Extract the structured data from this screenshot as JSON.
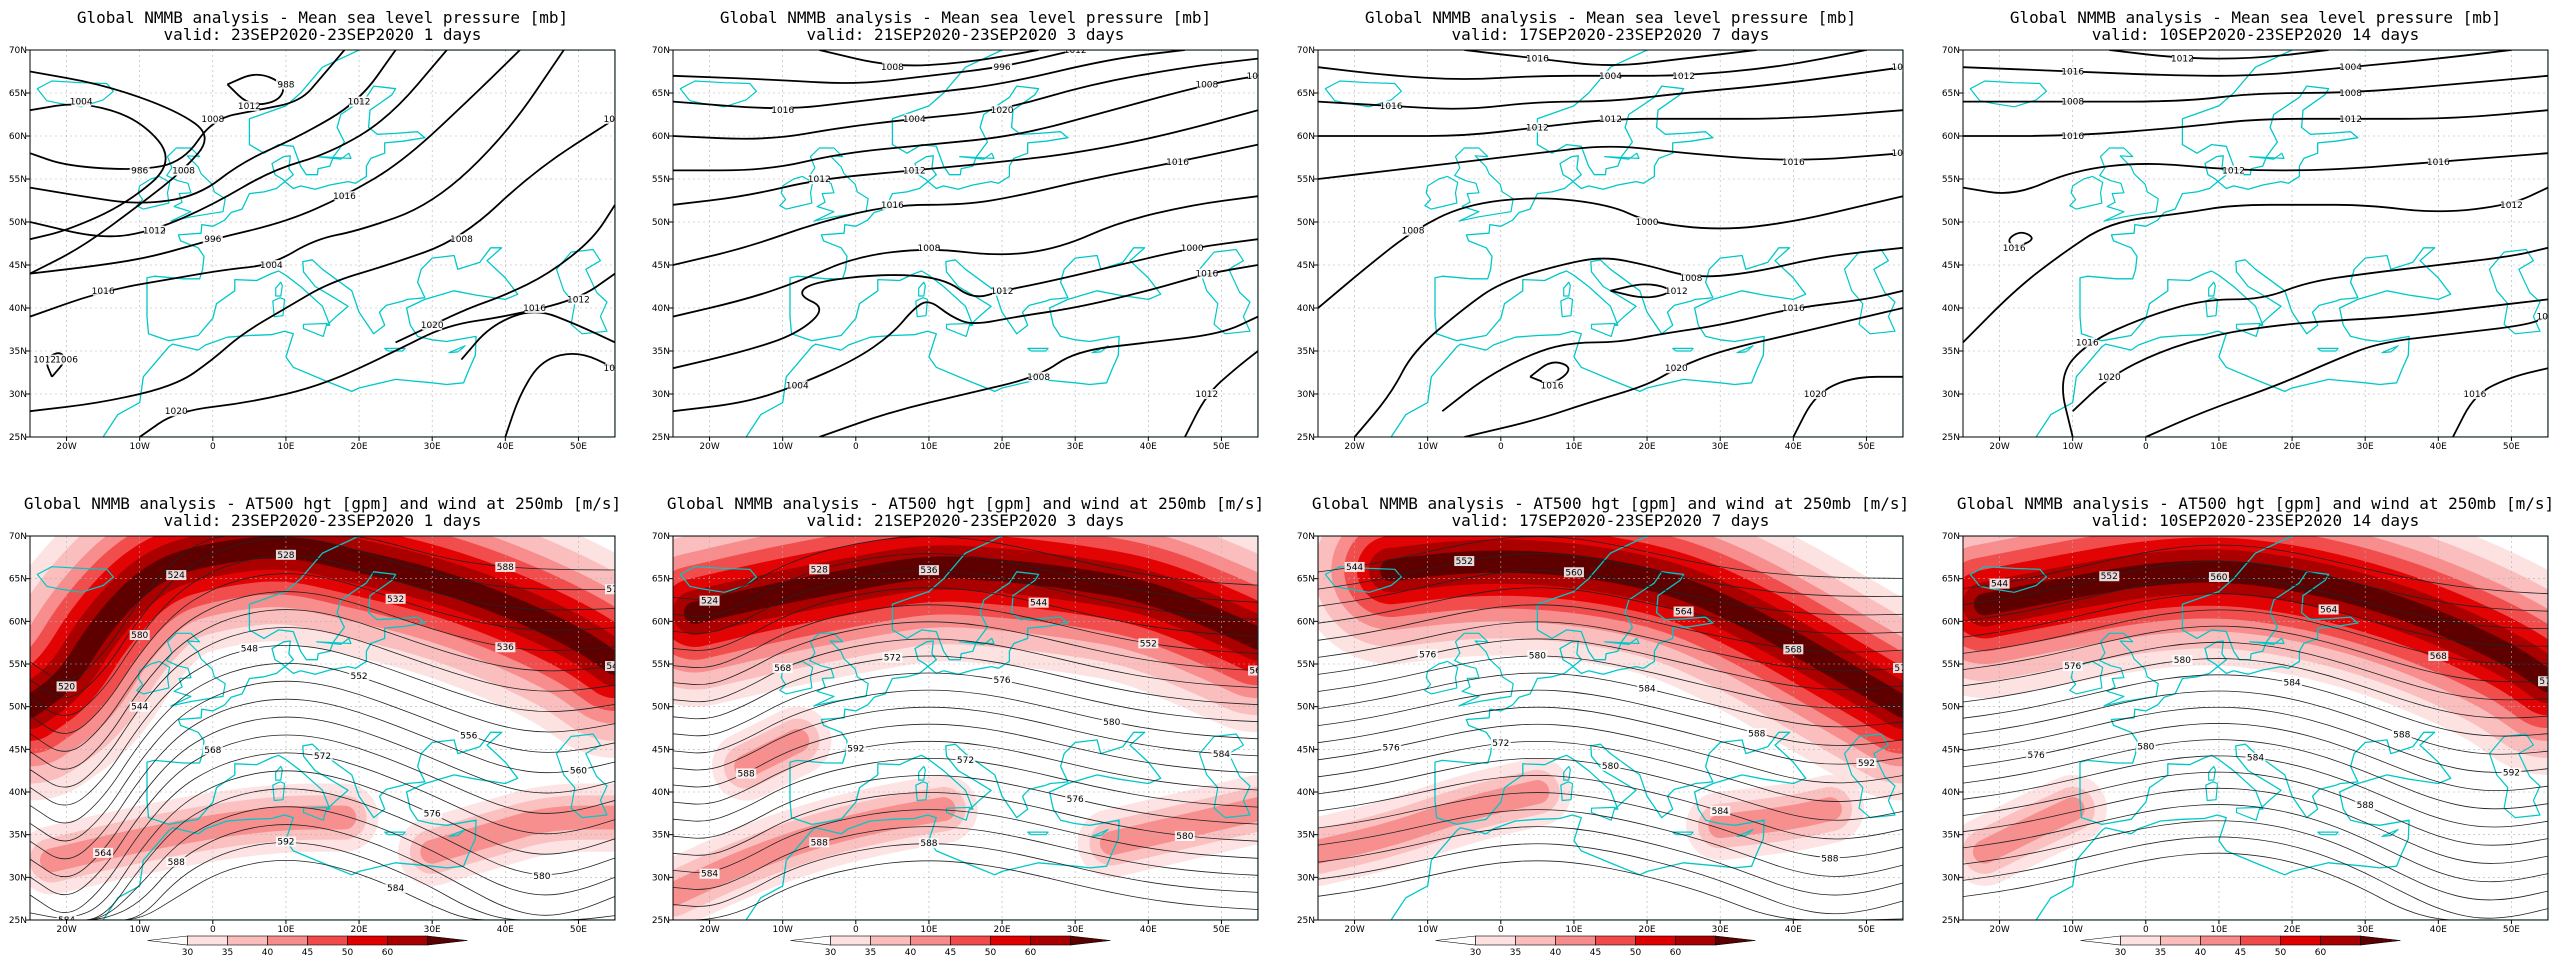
{
  "panels": [
    {
      "title": "Global NMMB analysis - Mean sea level pressure [mb]",
      "valid": "valid: 23SEP2020-23SEP2020   1 days",
      "type": "mslp",
      "variant": 0,
      "labels": [
        "992",
        "984",
        "988",
        "986",
        "996",
        "1000",
        "996",
        "1004",
        "1006",
        "1008",
        "1012",
        "1016",
        "1020",
        "1000",
        "1004",
        "1008",
        "1012",
        "1008",
        "1012",
        "1012",
        "1016",
        "1016",
        "1012",
        "1016",
        "1020"
      ]
    },
    {
      "title": "Global NMMB analysis - Mean sea level pressure [mb]",
      "valid": "valid: 21SEP2020-23SEP2020   3 days",
      "type": "mslp",
      "variant": 1,
      "labels": [
        "992",
        "996",
        "1000",
        "1004",
        "1008",
        "1012",
        "1016",
        "1020",
        "1000",
        "1004",
        "1008",
        "1012",
        "1008",
        "1012",
        "1016",
        "1020",
        "1016",
        "1012",
        "1016",
        "1008",
        "1012",
        "1016"
      ]
    },
    {
      "title": "Global NMMB analysis - Mean sea level pressure [mb]",
      "valid": "valid: 17SEP2020-23SEP2020   7 days",
      "type": "mslp",
      "variant": 2,
      "labels": [
        "1000",
        "1004",
        "1008",
        "1012",
        "1016",
        "1000",
        "1008",
        "1012",
        "1016",
        "1020",
        "1016",
        "1020",
        "1016",
        "1012",
        "1016",
        "1012",
        "1016",
        "1008"
      ]
    },
    {
      "title": "Global NMMB analysis - Mean sea level pressure [mb]",
      "valid": "valid: 10SEP2020-23SEP2020   14 days",
      "type": "mslp",
      "variant": 3,
      "labels": [
        "1000",
        "1004",
        "1008",
        "1012",
        "1016",
        "1016",
        "1012",
        "1016",
        "1020",
        "1016",
        "1016",
        "1012",
        "1016",
        "1008",
        "1016",
        "1012"
      ]
    },
    {
      "title": "Global NMMB analysis - AT500 hgt [gpm] and wind at 250mb [m/s]",
      "valid": "valid: 23SEP2020-23SEP2020   1 days",
      "type": "hgt",
      "variant": 0,
      "labels": [
        "520",
        "524",
        "528",
        "532",
        "536",
        "540",
        "544",
        "548",
        "552",
        "556",
        "560",
        "564",
        "568",
        "572",
        "576",
        "580",
        "584",
        "588",
        "592",
        "584",
        "588",
        "576",
        "580"
      ]
    },
    {
      "title": "Global NMMB analysis - AT500 hgt [gpm] and wind at 250mb [m/s]",
      "valid": "valid: 21SEP2020-23SEP2020   3 days",
      "type": "hgt",
      "variant": 1,
      "labels": [
        "524",
        "528",
        "536",
        "544",
        "552",
        "560",
        "568",
        "572",
        "576",
        "580",
        "584",
        "588",
        "592",
        "572",
        "576",
        "580",
        "584",
        "588",
        "588"
      ]
    },
    {
      "title": "Global NMMB analysis - AT500 hgt [gpm] and wind at 250mb [m/s]",
      "valid": "valid: 17SEP2020-23SEP2020   7 days",
      "type": "hgt",
      "variant": 2,
      "labels": [
        "544",
        "552",
        "560",
        "564",
        "568",
        "572",
        "576",
        "580",
        "584",
        "588",
        "592",
        "576",
        "572",
        "580",
        "584",
        "588"
      ]
    },
    {
      "title": "Global NMMB analysis - AT500 hgt [gpm] and wind at 250mb [m/s]",
      "valid": "valid: 10SEP2020-23SEP2020   14 days",
      "type": "hgt",
      "variant": 3,
      "labels": [
        "544",
        "552",
        "560",
        "564",
        "568",
        "572",
        "576",
        "580",
        "584",
        "588",
        "592",
        "576",
        "580",
        "584",
        "588"
      ]
    }
  ],
  "axes": {
    "x_ticks": [
      "20W",
      "10W",
      "0",
      "10E",
      "20E",
      "30E",
      "40E",
      "50E"
    ],
    "y_ticks": [
      "70N",
      "65N",
      "60N",
      "55N",
      "50N",
      "45N",
      "40N",
      "35N",
      "30N",
      "25N"
    ]
  },
  "colorbar": {
    "ticks": [
      "30",
      "35",
      "40",
      "45",
      "50",
      "60"
    ],
    "colors": [
      "#ffffff",
      "#fde0e0",
      "#fbbcbc",
      "#f78a8a",
      "#f04a4a",
      "#e00000",
      "#a80000",
      "#5a0000"
    ]
  },
  "colors": {
    "coast": "#00c8c8",
    "contour": "#000000",
    "grid": "#b0b0b0"
  }
}
